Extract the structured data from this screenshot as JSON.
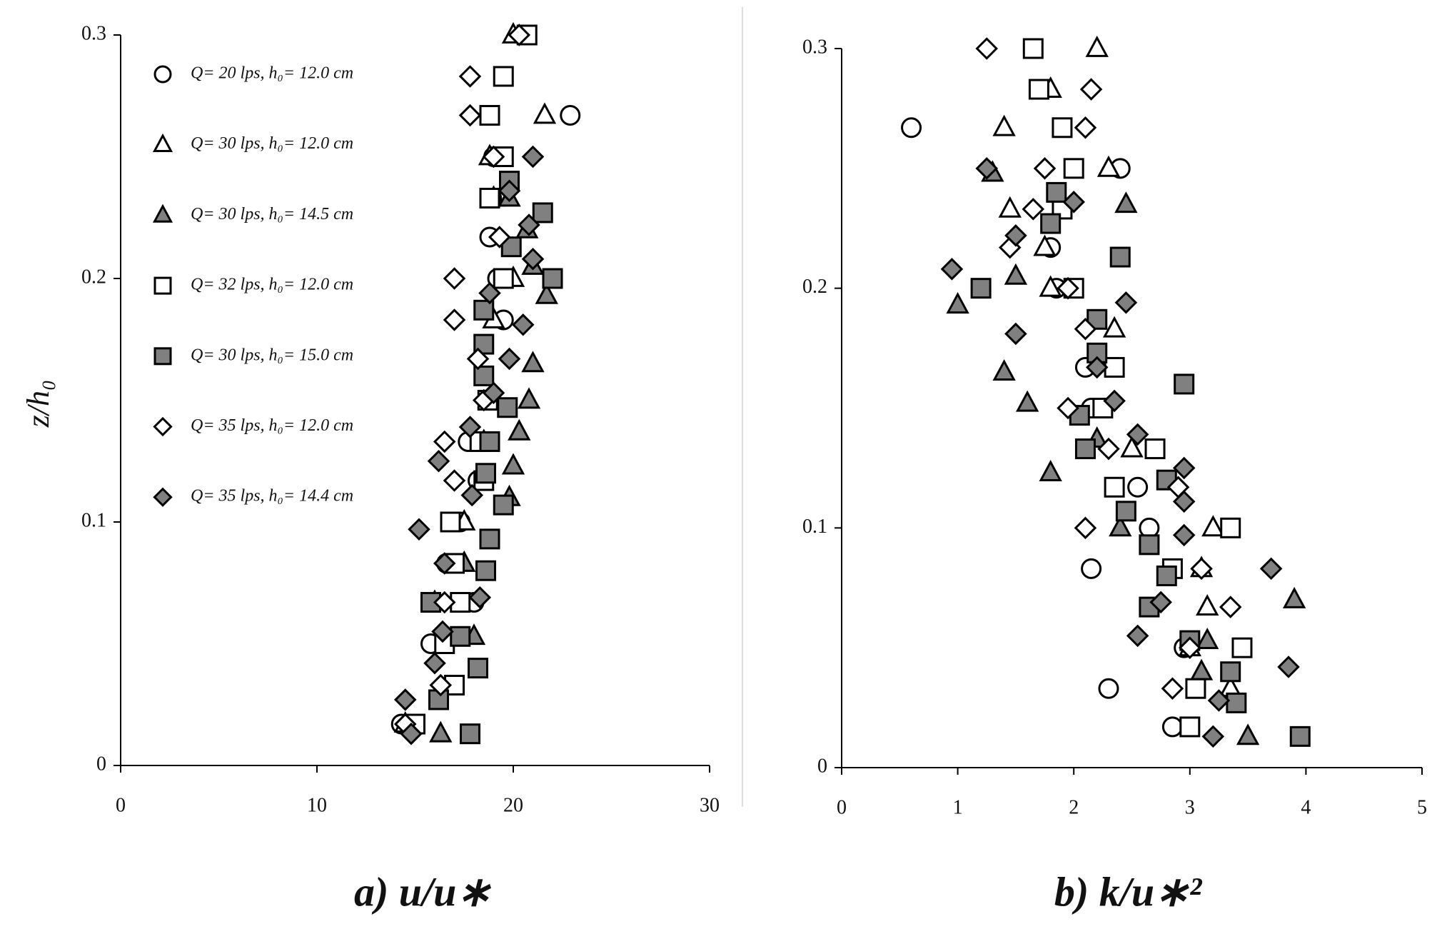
{
  "chart_data": [
    {
      "type": "scatter",
      "title": "a)  u/u∗",
      "ylabel": "z/h₀",
      "xlim": [
        0,
        30
      ],
      "xticks": [
        0,
        10,
        20,
        30
      ],
      "ylim": [
        0,
        0.3
      ],
      "yticks": [
        0,
        0.1,
        0.2,
        0.3
      ],
      "grid": false,
      "legend": "upper left",
      "series": [
        {
          "name": "Q= 20 lps,  h₀= 12.0 cm",
          "marker": "circle",
          "color": "#ffffff",
          "x": [
            14.3,
            17,
            15.8,
            18,
            16.6,
            17.3,
            18.2,
            17.7,
            18.8,
            19.5,
            19.2,
            18.8,
            18.9,
            19.0,
            22.9
          ],
          "y": [
            0.017,
            0.033,
            0.05,
            0.067,
            0.083,
            0.1,
            0.117,
            0.133,
            0.15,
            0.183,
            0.2,
            0.217,
            0.233,
            0.25,
            0.267
          ]
        },
        {
          "name": "Q= 30 lps,  h₀= 12.0 cm",
          "marker": "triangle",
          "color": "#ffffff",
          "x": [
            14.5,
            16,
            17.5,
            18.5,
            19,
            20,
            19,
            18.8,
            21.6,
            20
          ],
          "y": [
            0.017,
            0.067,
            0.1,
            0.133,
            0.183,
            0.2,
            0.233,
            0.25,
            0.267,
            0.3
          ]
        },
        {
          "name": "Q= 30 lps,  h₀= 14.5 cm",
          "marker": "triangle",
          "color": "#808080",
          "x": [
            16.3,
            18,
            17.5,
            19.8,
            20,
            20.3,
            20.8,
            21,
            21.7,
            21,
            20.7,
            19.8
          ],
          "y": [
            0.013,
            0.053,
            0.083,
            0.11,
            0.123,
            0.137,
            0.15,
            0.165,
            0.193,
            0.205,
            0.22,
            0.233
          ]
        },
        {
          "name": "Q= 32 lps,  h₀= 12.0 cm",
          "marker": "square",
          "color": "#ffffff",
          "x": [
            15,
            17,
            16.5,
            17.3,
            17,
            16.8,
            18.5,
            18.3,
            18.7,
            19.5,
            18.8,
            19.5,
            18.8,
            19.5,
            20.7
          ],
          "y": [
            0.017,
            0.033,
            0.05,
            0.067,
            0.083,
            0.1,
            0.117,
            0.133,
            0.15,
            0.2,
            0.233,
            0.25,
            0.267,
            0.283,
            0.3
          ]
        },
        {
          "name": "Q= 30 lps,  h₀= 15.0 cm",
          "marker": "square",
          "color": "#808080",
          "x": [
            17.8,
            16.2,
            18.2,
            17.3,
            15.8,
            18.6,
            18.8,
            19.5,
            18.6,
            18.8,
            19.7,
            18.5,
            18.5,
            18.5,
            22,
            19.9,
            21.5,
            19.8
          ],
          "y": [
            0.013,
            0.027,
            0.04,
            0.053,
            0.067,
            0.08,
            0.093,
            0.107,
            0.12,
            0.133,
            0.147,
            0.16,
            0.173,
            0.187,
            0.2,
            0.213,
            0.227,
            0.24
          ]
        },
        {
          "name": "Q= 35 lps,  h₀= 12.0 cm",
          "marker": "diamond",
          "color": "#ffffff",
          "x": [
            14.5,
            16.3,
            16.5,
            17,
            16.5,
            18.5,
            18.2,
            17,
            17,
            19.3,
            19,
            17.8,
            17.8,
            20.3
          ],
          "y": [
            0.017,
            0.033,
            0.067,
            0.117,
            0.133,
            0.15,
            0.167,
            0.183,
            0.2,
            0.217,
            0.25,
            0.267,
            0.283,
            0.3
          ]
        },
        {
          "name": "Q= 35 lps,  h₀= 14.4 cm",
          "marker": "diamond",
          "color": "#808080",
          "x": [
            14.8,
            14.5,
            16.0,
            16.4,
            18.3,
            16.5,
            15.2,
            17.9,
            16.2,
            17.8,
            19.0,
            19.8,
            20.5,
            18.8,
            21,
            20.8,
            19.8,
            21
          ],
          "y": [
            0.013,
            0.027,
            0.042,
            0.055,
            0.069,
            0.083,
            0.097,
            0.111,
            0.125,
            0.139,
            0.153,
            0.167,
            0.181,
            0.194,
            0.208,
            0.222,
            0.236,
            0.25
          ]
        }
      ]
    },
    {
      "type": "scatter",
      "title": "b)  k/u∗²",
      "xlim": [
        0,
        5
      ],
      "xticks": [
        0,
        1,
        2,
        3,
        4,
        5
      ],
      "ylim": [
        0,
        0.3
      ],
      "yticks": [
        0,
        0.1,
        0.2,
        0.3
      ],
      "grid": false,
      "series": [
        {
          "marker": "circle",
          "color": "#ffffff",
          "x": [
            0.6,
            2.4,
            1.85,
            1.8,
            2.1,
            2.15,
            2.55,
            2.65,
            2.15,
            2.3,
            2.95,
            2.85
          ],
          "y": [
            0.267,
            0.25,
            0.2,
            0.217,
            0.167,
            0.15,
            0.117,
            0.1,
            0.083,
            0.033,
            0.05,
            0.017
          ]
        },
        {
          "marker": "triangle",
          "color": "#ffffff",
          "x": [
            2.2,
            1.8,
            1.4,
            2.3,
            1.45,
            1.75,
            1.8,
            2.35,
            2.5,
            3.2,
            3.1,
            3.15,
            3.0,
            3.35
          ],
          "y": [
            0.3,
            0.283,
            0.267,
            0.25,
            0.233,
            0.217,
            0.2,
            0.183,
            0.133,
            0.1,
            0.083,
            0.067,
            0.05,
            0.033
          ]
        },
        {
          "marker": "triangle",
          "color": "#808080",
          "x": [
            3.5,
            3.1,
            3.15,
            3.9,
            2.4,
            2.2,
            1.8,
            1.6,
            1.4,
            1.0,
            1.5,
            2.45,
            1.3
          ],
          "y": [
            0.013,
            0.04,
            0.053,
            0.07,
            0.1,
            0.137,
            0.123,
            0.152,
            0.165,
            0.193,
            0.205,
            0.235,
            0.248
          ]
        },
        {
          "marker": "square",
          "color": "#ffffff",
          "x": [
            1.65,
            1.7,
            1.9,
            2.0,
            1.9,
            2.0,
            2.35,
            2.25,
            2.7,
            2.35,
            3.35,
            2.85,
            3.45,
            3.05,
            3.0
          ],
          "y": [
            0.3,
            0.283,
            0.267,
            0.25,
            0.233,
            0.2,
            0.167,
            0.15,
            0.133,
            0.117,
            0.1,
            0.083,
            0.05,
            0.033,
            0.017
          ]
        },
        {
          "marker": "square",
          "color": "#808080",
          "x": [
            3.95,
            3.4,
            3.35,
            3.0,
            2.65,
            2.8,
            2.65,
            2.45,
            2.8,
            2.1,
            2.05,
            2.95,
            2.2,
            2.2,
            1.2,
            2.4,
            1.8,
            1.85
          ],
          "y": [
            0.013,
            0.027,
            0.04,
            0.053,
            0.067,
            0.08,
            0.093,
            0.107,
            0.12,
            0.133,
            0.147,
            0.16,
            0.173,
            0.187,
            0.2,
            0.213,
            0.227,
            0.24
          ]
        },
        {
          "marker": "diamond",
          "color": "#ffffff",
          "x": [
            1.25,
            2.15,
            2.1,
            1.75,
            1.65,
            1.45,
            1.95,
            2.1,
            1.95,
            2.3,
            2.1,
            2.9,
            3.1,
            3.35,
            3.0,
            2.85
          ],
          "y": [
            0.3,
            0.283,
            0.267,
            0.25,
            0.233,
            0.217,
            0.2,
            0.183,
            0.15,
            0.133,
            0.1,
            0.117,
            0.083,
            0.067,
            0.05,
            0.033
          ]
        },
        {
          "marker": "diamond",
          "color": "#808080",
          "x": [
            3.2,
            3.25,
            3.85,
            2.55,
            2.75,
            3.7,
            2.95,
            2.95,
            2.95,
            2.55,
            2.35,
            2.2,
            1.5,
            2.45,
            0.95,
            1.5,
            2.0,
            1.25
          ],
          "y": [
            0.013,
            0.028,
            0.042,
            0.055,
            0.069,
            0.083,
            0.097,
            0.111,
            0.125,
            0.139,
            0.153,
            0.167,
            0.181,
            0.194,
            0.208,
            0.222,
            0.236,
            0.25
          ]
        }
      ]
    }
  ]
}
